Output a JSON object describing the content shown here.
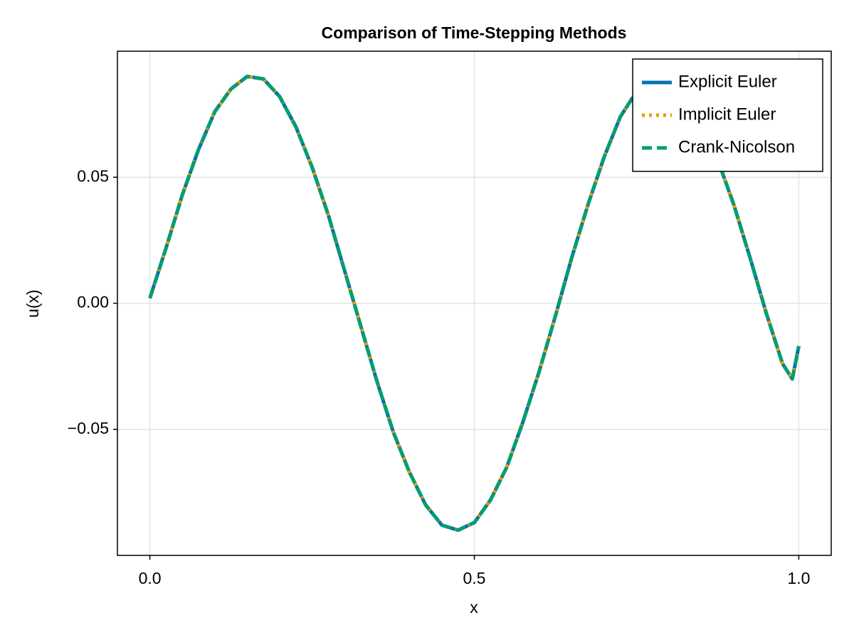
{
  "chart_data": {
    "type": "line",
    "title": "Comparison of Time-Stepping Methods",
    "x_label": "x",
    "y_label": "u(x)",
    "x": [
      0,
      0.025,
      0.05,
      0.075,
      0.1,
      0.125,
      0.15,
      0.175,
      0.2,
      0.225,
      0.25,
      0.275,
      0.3,
      0.325,
      0.35,
      0.375,
      0.4,
      0.425,
      0.45,
      0.475,
      0.5,
      0.525,
      0.55,
      0.575,
      0.6,
      0.625,
      0.65,
      0.675,
      0.7,
      0.725,
      0.75,
      0.775,
      0.8,
      0.825,
      0.85,
      0.875,
      0.9,
      0.925,
      0.95,
      0.975,
      0.99,
      1.0
    ],
    "series": [
      {
        "name": "Explicit Euler",
        "color": "#0072b2",
        "dash": "solid",
        "values": [
          0.002,
          0.022,
          0.043,
          0.061,
          0.076,
          0.085,
          0.09,
          0.089,
          0.082,
          0.07,
          0.054,
          0.035,
          0.013,
          -0.009,
          -0.031,
          -0.051,
          -0.067,
          -0.08,
          -0.088,
          -0.09,
          -0.087,
          -0.078,
          -0.065,
          -0.047,
          -0.027,
          -0.005,
          0.018,
          0.039,
          0.058,
          0.074,
          0.084,
          0.09,
          0.09,
          0.084,
          0.073,
          0.057,
          0.039,
          0.018,
          -0.004,
          -0.024,
          -0.03,
          -0.017
        ]
      },
      {
        "name": "Implicit Euler",
        "color": "#e69f00",
        "dash": "dot",
        "values": [
          0.002,
          0.022,
          0.043,
          0.061,
          0.076,
          0.085,
          0.09,
          0.089,
          0.082,
          0.07,
          0.054,
          0.035,
          0.013,
          -0.009,
          -0.031,
          -0.051,
          -0.067,
          -0.08,
          -0.088,
          -0.09,
          -0.087,
          -0.078,
          -0.065,
          -0.047,
          -0.027,
          -0.005,
          0.018,
          0.039,
          0.058,
          0.074,
          0.084,
          0.09,
          0.09,
          0.084,
          0.073,
          0.057,
          0.039,
          0.018,
          -0.004,
          -0.024,
          -0.03,
          -0.017
        ]
      },
      {
        "name": "Crank-Nicolson",
        "color": "#009e73",
        "dash": "dash",
        "values": [
          0.002,
          0.022,
          0.043,
          0.061,
          0.076,
          0.085,
          0.09,
          0.089,
          0.082,
          0.07,
          0.054,
          0.035,
          0.013,
          -0.009,
          -0.031,
          -0.051,
          -0.067,
          -0.08,
          -0.088,
          -0.09,
          -0.087,
          -0.078,
          -0.065,
          -0.047,
          -0.027,
          -0.005,
          0.018,
          0.039,
          0.058,
          0.074,
          0.084,
          0.09,
          0.09,
          0.084,
          0.073,
          0.057,
          0.039,
          0.018,
          -0.004,
          -0.024,
          -0.03,
          -0.017
        ]
      }
    ],
    "xlim": [
      -0.05,
      1.05
    ],
    "ylim": [
      -0.1,
      0.1
    ],
    "xticks": [
      {
        "value": 0,
        "label": "0.0"
      },
      0.5,
      {
        "value": 1,
        "label": "1.0"
      }
    ],
    "yticks": [
      {
        "value": -0.05,
        "label": "−0.05"
      },
      {
        "value": 0,
        "label": "0.00"
      },
      0.05
    ],
    "grid": true,
    "legend": "top-right"
  }
}
